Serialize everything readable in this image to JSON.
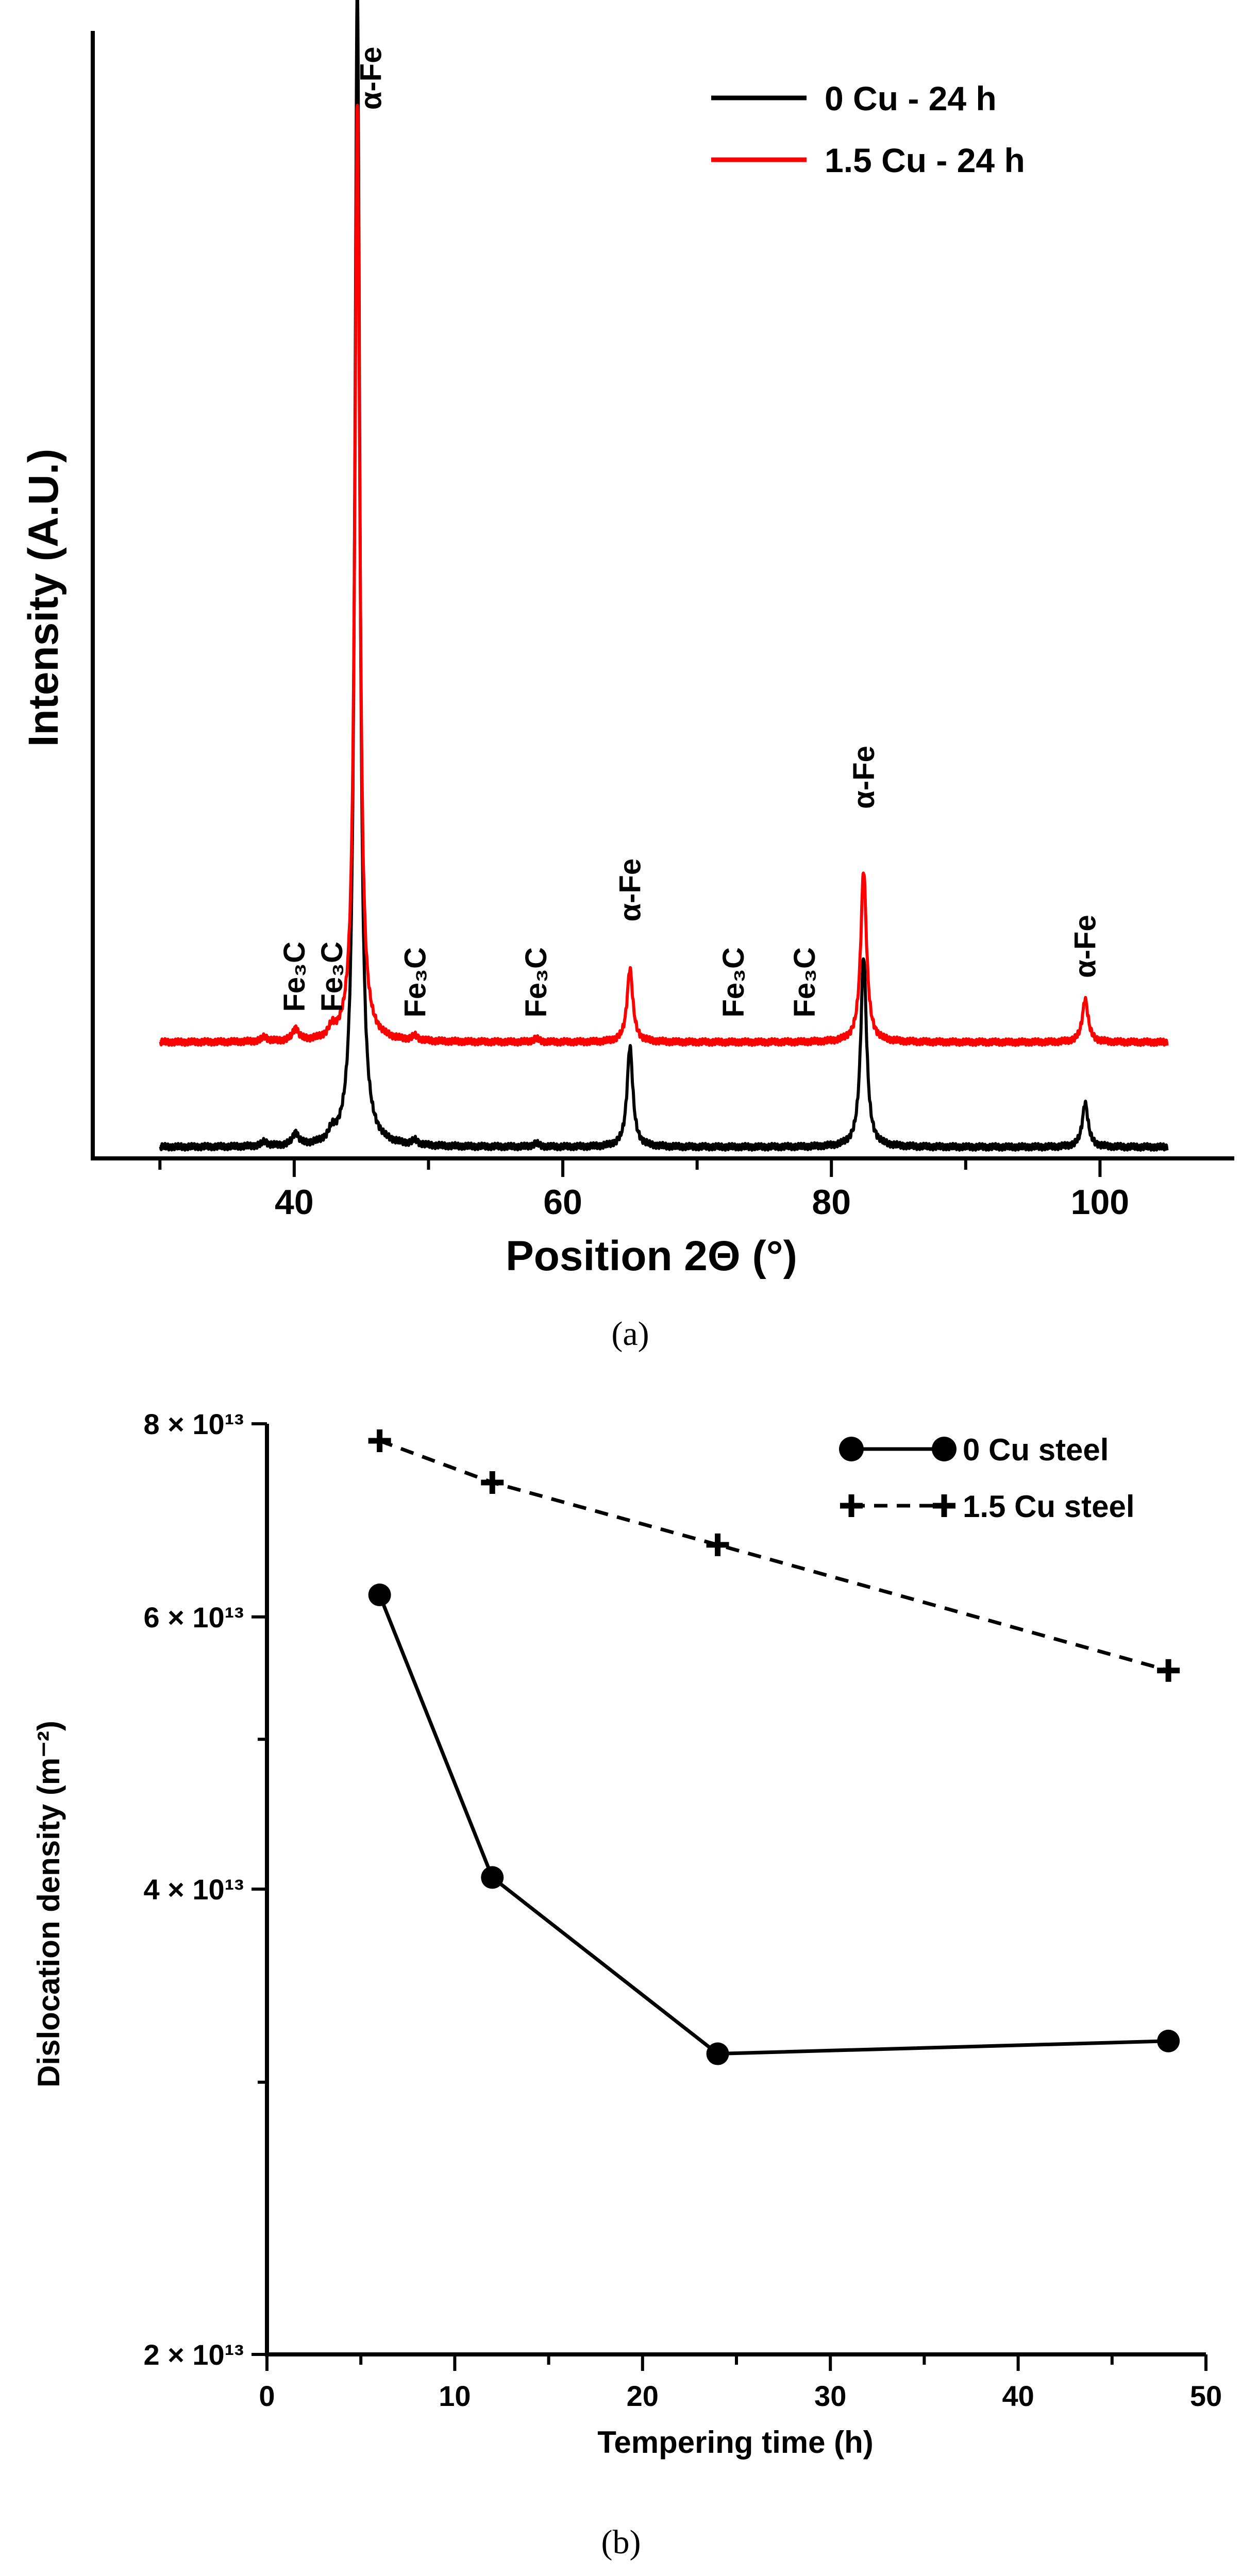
{
  "chart_data": [
    {
      "type": "line",
      "panel": "a",
      "caption": "(a)",
      "xlabel": "Position 2Θ (°)",
      "ylabel": "Intensity (A.U.)",
      "xlim": [
        25,
        110
      ],
      "ylim": [
        0,
        100
      ],
      "xticks": [
        40,
        60,
        80,
        100
      ],
      "grid": false,
      "legend_position": "top-right",
      "series": [
        {
          "name": "0 Cu - 24 h",
          "color": "#000000",
          "baseline": 1.0,
          "peaks": [
            [
              37.8,
              0.4
            ],
            [
              40.1,
              1.1
            ],
            [
              42.8,
              0.8
            ],
            [
              44.7,
              103
            ],
            [
              49.0,
              0.4
            ],
            [
              58.0,
              0.3
            ],
            [
              65.0,
              8.9
            ],
            [
              82.4,
              16.9
            ],
            [
              98.9,
              3.9
            ]
          ]
        },
        {
          "name": "1.5 Cu - 24 h",
          "color": "#ff0000",
          "baseline": 10.3,
          "peaks": [
            [
              37.8,
              0.4
            ],
            [
              40.1,
              1.1
            ],
            [
              42.8,
              0.8
            ],
            [
              44.7,
              83.2
            ],
            [
              49.0,
              0.4
            ],
            [
              58.0,
              0.3
            ],
            [
              65.0,
              6.5
            ],
            [
              82.4,
              15.2
            ],
            [
              98.9,
              3.8
            ]
          ]
        }
      ],
      "annotations": [
        {
          "text": "α-Fe",
          "x": 45.7,
          "y": 93
        },
        {
          "text": "Fe₃C",
          "x": 40.0,
          "y": 13
        },
        {
          "text": "Fe₃C",
          "x": 42.8,
          "y": 13
        },
        {
          "text": "Fe₃C",
          "x": 49.0,
          "y": 12.5
        },
        {
          "text": "Fe₃C",
          "x": 58.0,
          "y": 12.5
        },
        {
          "text": "α-Fe",
          "x": 65.0,
          "y": 21
        },
        {
          "text": "Fe₃C",
          "x": 72.7,
          "y": 12.5
        },
        {
          "text": "Fe₃C",
          "x": 78.0,
          "y": 12.5
        },
        {
          "text": "α-Fe",
          "x": 82.4,
          "y": 31
        },
        {
          "text": "α-Fe",
          "x": 98.9,
          "y": 16
        }
      ]
    },
    {
      "type": "line",
      "panel": "b",
      "caption": "(b)",
      "xlabel": "Tempering time (h)",
      "ylabel": "Dislocation density (m⁻²)",
      "xlim": [
        0,
        50
      ],
      "ylim": [
        20000000000000.0,
        80000000000000.0
      ],
      "yscale": "log",
      "xticks": [
        0,
        10,
        20,
        30,
        40,
        50
      ],
      "yticks": [
        {
          "value": 20000000000000.0,
          "label": "2 × 10¹³"
        },
        {
          "value": 40000000000000.0,
          "label": "4 × 10¹³"
        },
        {
          "value": 60000000000000.0,
          "label": "6 × 10¹³"
        },
        {
          "value": 80000000000000.0,
          "label": "8 × 10¹³"
        }
      ],
      "grid": false,
      "legend_position": "top-right",
      "series": [
        {
          "name": "0 Cu steel",
          "marker": "circle",
          "linestyle": "solid",
          "color": "#000000",
          "x": [
            6,
            12,
            24,
            48
          ],
          "y": [
            62000000000000.0,
            40700000000000.0,
            31300000000000.0,
            31900000000000.0
          ]
        },
        {
          "name": "1.5 Cu steel",
          "marker": "plus",
          "linestyle": "dashed",
          "color": "#000000",
          "x": [
            6,
            12,
            24,
            48
          ],
          "y": [
            78000000000000.0,
            73300000000000.0,
            66800000000000.0,
            55400000000000.0
          ]
        }
      ]
    }
  ]
}
